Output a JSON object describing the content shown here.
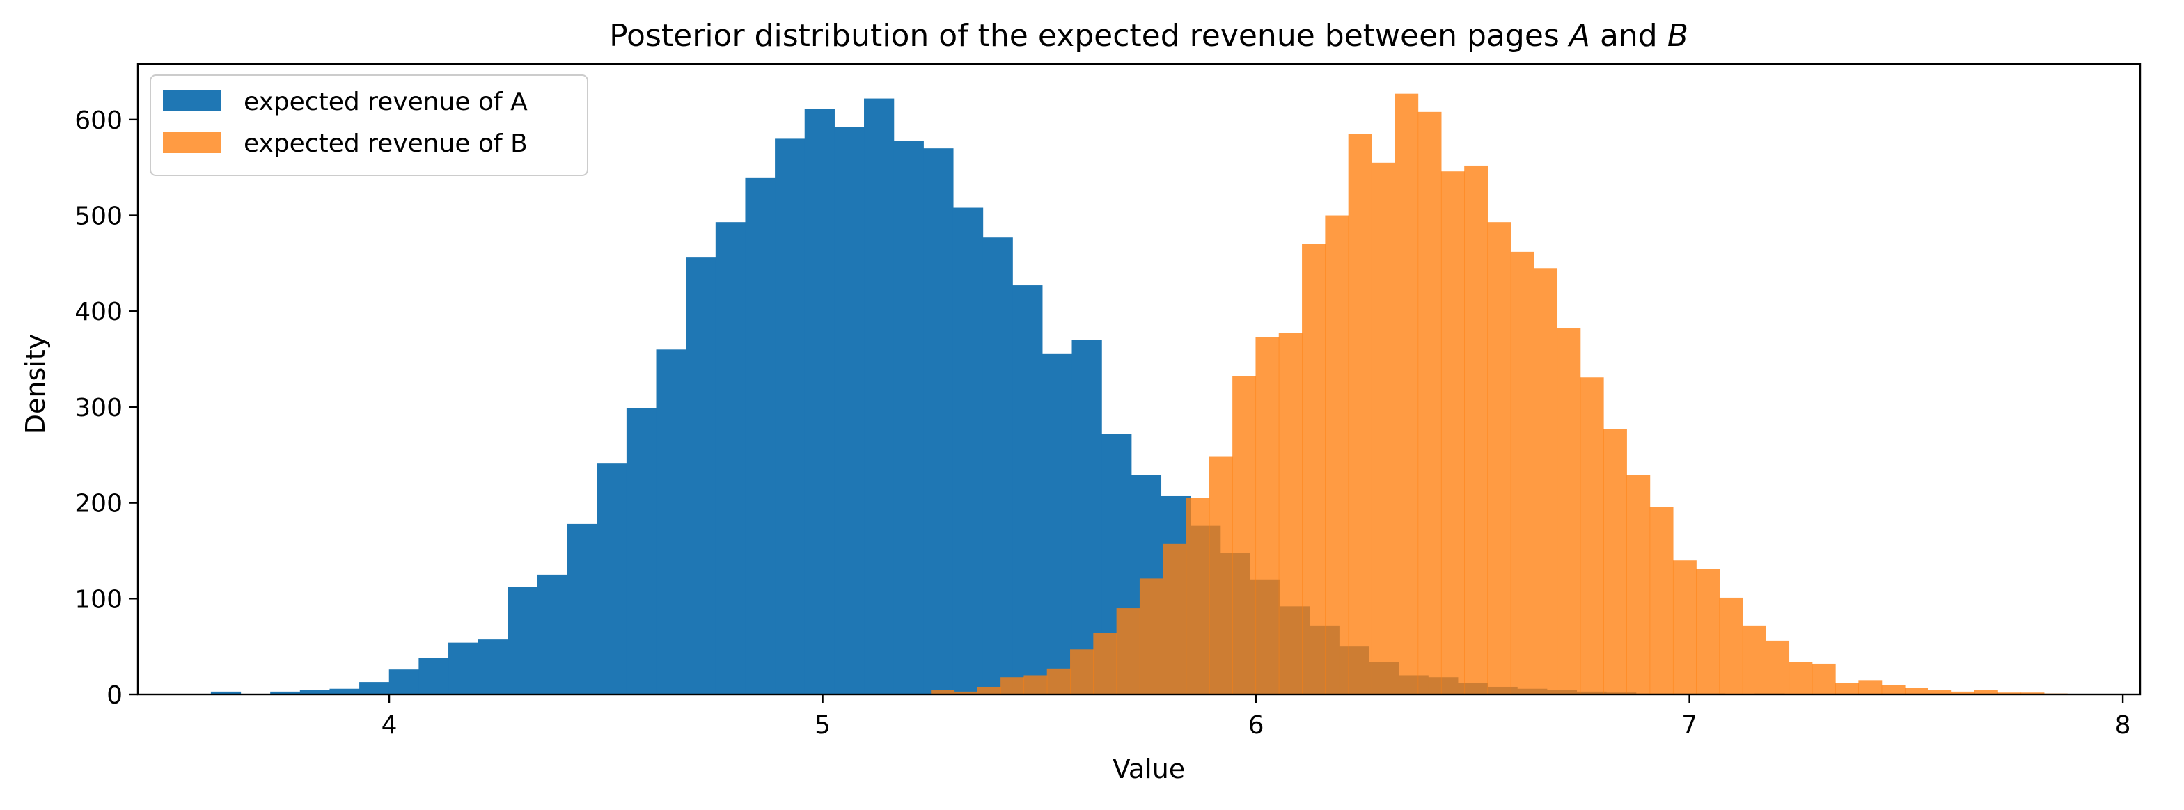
{
  "chart_data": {
    "type": "bar",
    "title": "Posterior distribution of the expected revenue between pages A and B",
    "title_parts": {
      "left": "Posterior distribution of the expected revenue",
      "right_prefix": "between pages ",
      "a": "A",
      "and": " and ",
      "b": "B"
    },
    "xlabel": "Value",
    "ylabel": "Density",
    "xlim": [
      3.42,
      8.04
    ],
    "ylim": [
      0,
      658
    ],
    "x_ticks": [
      4,
      5,
      6,
      7,
      8
    ],
    "x_tick_labels": [
      "4",
      "5",
      "6",
      "7",
      "8"
    ],
    "y_ticks": [
      0,
      100,
      200,
      300,
      400,
      500,
      600
    ],
    "y_tick_labels": [
      "0",
      "100",
      "200",
      "300",
      "400",
      "500",
      "600"
    ],
    "grid": false,
    "legend_position": "top-left",
    "series": [
      {
        "name": "expected revenue of A",
        "color": "#1f77b4",
        "opacity": 1.0,
        "bin_start": 3.52,
        "bin_width": 0.0685,
        "values": [
          0,
          3,
          0,
          3,
          5,
          6,
          13,
          26,
          38,
          54,
          58,
          112,
          125,
          178,
          241,
          299,
          360,
          456,
          493,
          539,
          580,
          611,
          592,
          622,
          578,
          570,
          508,
          477,
          427,
          356,
          370,
          272,
          229,
          207,
          176,
          148,
          120,
          92,
          72,
          50,
          34,
          20,
          18,
          12,
          8,
          6,
          5,
          3,
          2,
          1,
          1,
          1,
          0,
          1,
          0,
          0,
          0,
          0,
          0,
          0,
          0,
          0,
          0,
          0,
          0,
          0
        ]
      },
      {
        "name": "expected revenue of B",
        "color": "#ff7f0e",
        "opacity": 0.78,
        "bin_start": 5.25,
        "bin_width": 0.0535,
        "values": [
          5,
          3,
          8,
          18,
          20,
          27,
          47,
          64,
          90,
          121,
          157,
          205,
          248,
          332,
          373,
          377,
          470,
          500,
          585,
          555,
          627,
          608,
          546,
          552,
          493,
          462,
          445,
          382,
          331,
          277,
          229,
          196,
          140,
          131,
          101,
          72,
          56,
          34,
          32,
          12,
          15,
          10,
          7,
          5,
          3,
          5,
          2,
          2,
          1,
          0
        ]
      }
    ]
  }
}
